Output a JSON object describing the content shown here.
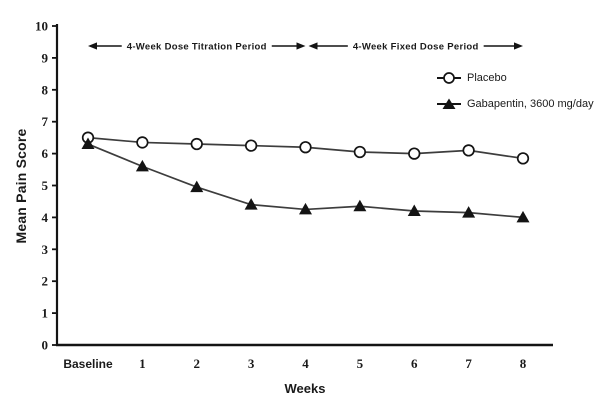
{
  "figure": {
    "background": "#ffffff",
    "ink_color": "#141414",
    "series_line_color": "#3d3d3d"
  },
  "chart_data": {
    "type": "line",
    "title": "",
    "xlabel": "Weeks",
    "ylabel": "Mean Pain Score",
    "ylim": [
      0,
      10
    ],
    "yticks": [
      "0",
      "1",
      "2",
      "3",
      "4",
      "5",
      "6",
      "7",
      "8",
      "9",
      "10"
    ],
    "categories": [
      "Baseline",
      "1",
      "2",
      "3",
      "4",
      "5",
      "6",
      "7",
      "8"
    ],
    "series": [
      {
        "name": "Placebo",
        "marker": "open-circle",
        "values": [
          6.5,
          6.35,
          6.3,
          6.25,
          6.2,
          6.05,
          6.0,
          6.1,
          5.85
        ]
      },
      {
        "name": "Gabapentin, 3600 mg/day",
        "marker": "filled-triangle",
        "values": [
          6.3,
          5.6,
          4.95,
          4.4,
          4.25,
          4.35,
          4.2,
          4.15,
          4.0
        ]
      }
    ],
    "annotations": [
      {
        "label": "4-Week Dose Titration Period",
        "from_cat": 0,
        "to_cat": 4
      },
      {
        "label": "4-Week Fixed Dose Period",
        "from_cat": 4,
        "to_cat": 8
      }
    ],
    "grid": false,
    "legend_position": "upper-right"
  }
}
